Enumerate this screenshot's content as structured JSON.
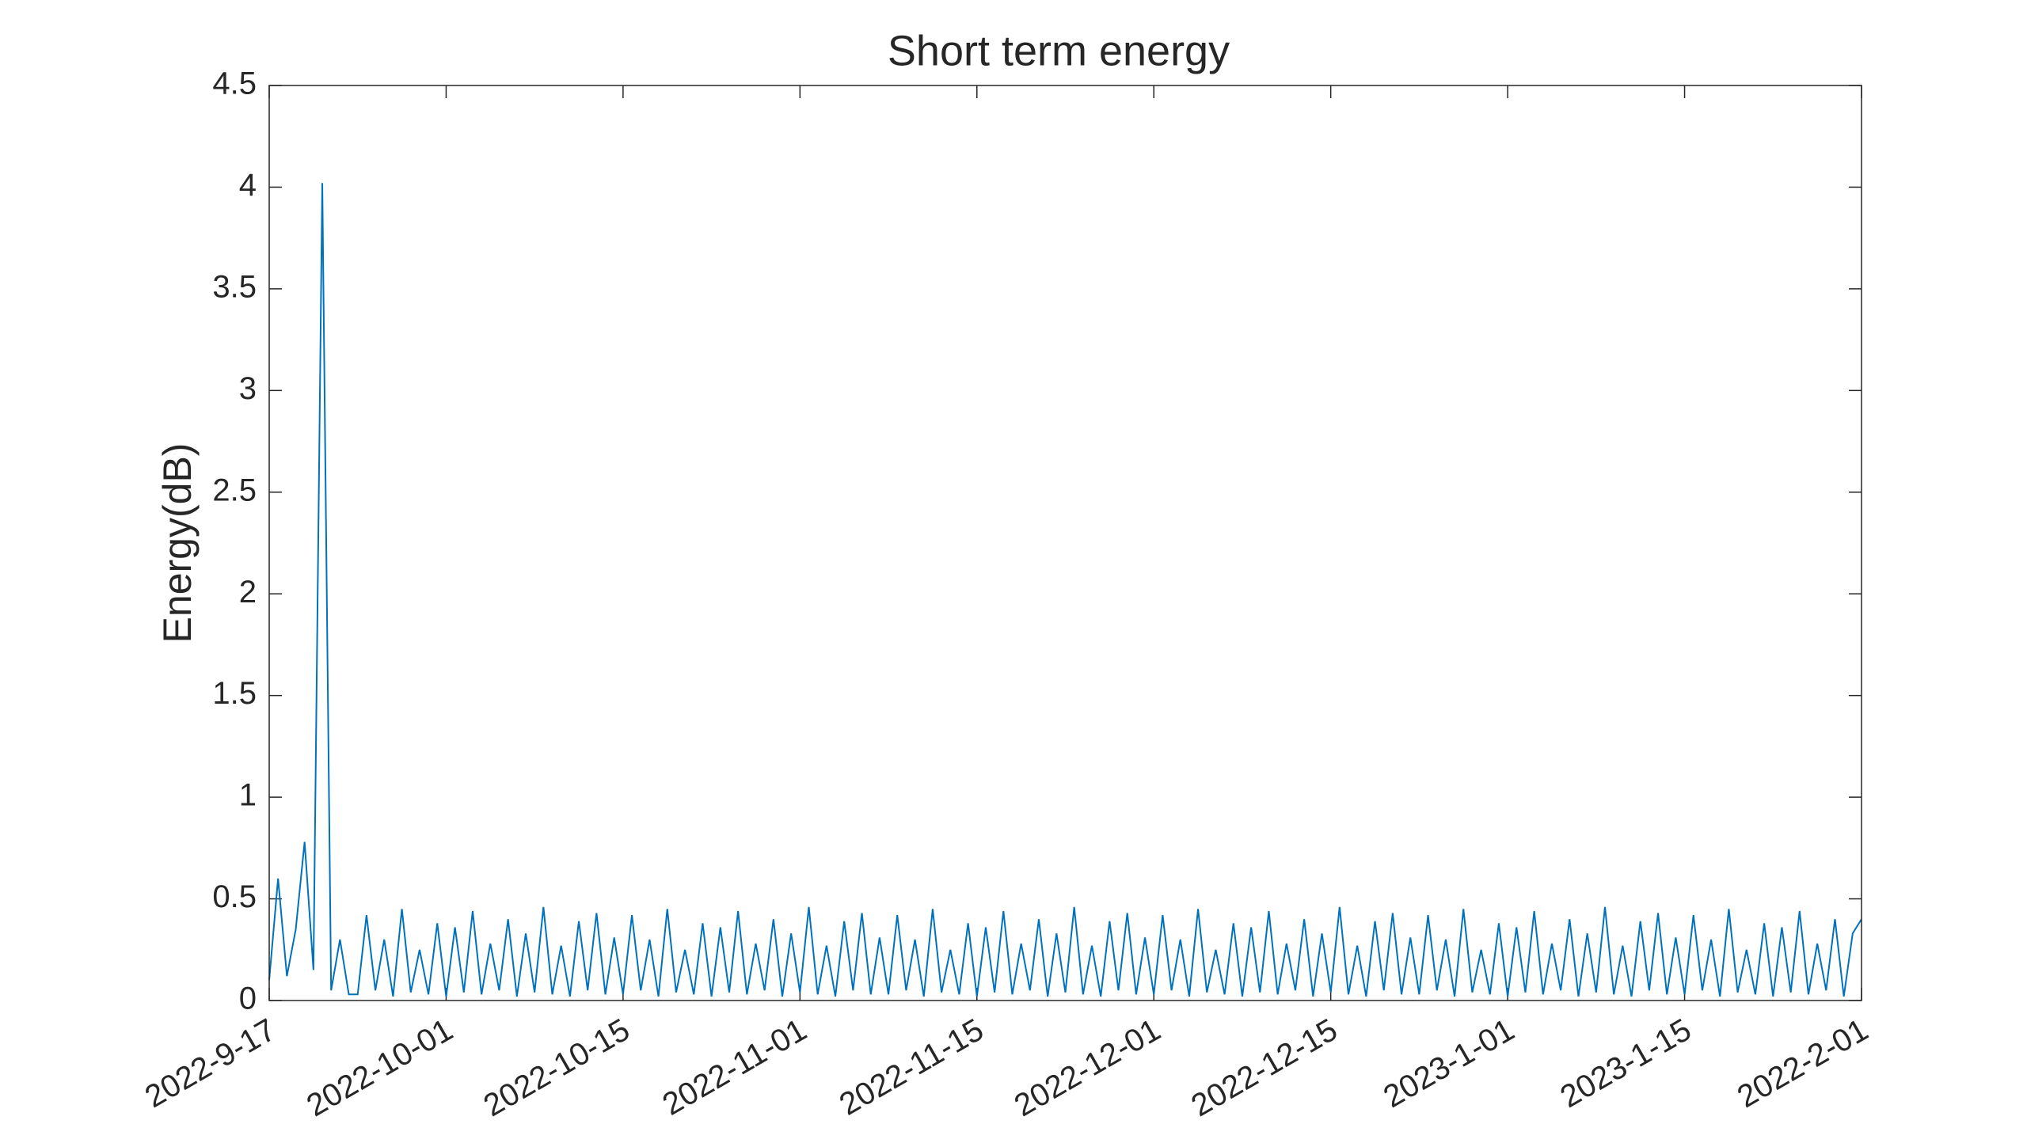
{
  "chart_data": {
    "type": "line",
    "title": "Short term energy",
    "ylabel": "Energy(dB)",
    "color": "#0072bd",
    "xlim": [
      0,
      9
    ],
    "xticks": [
      {
        "value": 0,
        "label": "2022-9-17"
      },
      {
        "value": 1,
        "label": "2022-10-01"
      },
      {
        "value": 2,
        "label": "2022-10-15"
      },
      {
        "value": 3,
        "label": "2022-11-01"
      },
      {
        "value": 4,
        "label": "2022-11-15"
      },
      {
        "value": 5,
        "label": "2022-12-01"
      },
      {
        "value": 6,
        "label": "2022-12-15"
      },
      {
        "value": 7,
        "label": "2023-1-01"
      },
      {
        "value": 8,
        "label": "2023-1-15"
      },
      {
        "value": 9,
        "label": "2022-2-01"
      }
    ],
    "ylim": [
      0,
      4.5
    ],
    "yticks": [
      0,
      0.5,
      1,
      1.5,
      2,
      2.5,
      3,
      3.5,
      4,
      4.5
    ],
    "x": [
      0,
      0.05,
      0.1,
      0.15,
      0.2,
      0.25,
      0.3,
      0.35,
      0.4,
      0.45,
      0.5,
      0.55,
      0.6,
      0.65,
      0.7,
      0.75,
      0.8,
      0.85,
      0.9,
      0.95,
      1,
      1.05,
      1.1,
      1.15,
      1.2,
      1.25,
      1.3,
      1.35,
      1.4,
      1.45,
      1.5,
      1.55,
      1.6,
      1.65,
      1.7,
      1.75,
      1.8,
      1.85,
      1.9,
      1.95,
      2,
      2.05,
      2.1,
      2.15,
      2.2,
      2.25,
      2.3,
      2.35,
      2.4,
      2.45,
      2.5,
      2.55,
      2.6,
      2.65,
      2.7,
      2.75,
      2.8,
      2.85,
      2.9,
      2.95,
      3,
      3.05,
      3.1,
      3.15,
      3.2,
      3.25,
      3.3,
      3.35,
      3.4,
      3.45,
      3.5,
      3.55,
      3.6,
      3.65,
      3.7,
      3.75,
      3.8,
      3.85,
      3.9,
      3.95,
      4,
      4.05,
      4.1,
      4.15,
      4.2,
      4.25,
      4.3,
      4.35,
      4.4,
      4.45,
      4.5,
      4.55,
      4.6,
      4.65,
      4.7,
      4.75,
      4.8,
      4.85,
      4.9,
      4.95,
      5,
      5.05,
      5.1,
      5.15,
      5.2,
      5.25,
      5.3,
      5.35,
      5.4,
      5.45,
      5.5,
      5.55,
      5.6,
      5.65,
      5.7,
      5.75,
      5.8,
      5.85,
      5.9,
      5.95,
      6,
      6.05,
      6.1,
      6.15,
      6.2,
      6.25,
      6.3,
      6.35,
      6.4,
      6.45,
      6.5,
      6.55,
      6.6,
      6.65,
      6.7,
      6.75,
      6.8,
      6.85,
      6.9,
      6.95,
      7,
      7.05,
      7.1,
      7.15,
      7.2,
      7.25,
      7.3,
      7.35,
      7.4,
      7.45,
      7.5,
      7.55,
      7.6,
      7.65,
      7.7,
      7.75,
      7.8,
      7.85,
      7.9,
      7.95,
      8,
      8.05,
      8.1,
      8.15,
      8.2,
      8.25,
      8.3,
      8.35,
      8.4,
      8.45,
      8.5,
      8.55,
      8.6,
      8.65,
      8.7,
      8.75,
      8.8,
      8.85,
      8.9,
      8.95,
      9
    ],
    "values": [
      0.1,
      0.6,
      0.12,
      0.35,
      0.78,
      0.15,
      4.02,
      0.05,
      0.3,
      0.03,
      0.03,
      0.42,
      0.05,
      0.3,
      0.02,
      0.45,
      0.04,
      0.25,
      0.03,
      0.38,
      0.02,
      0.36,
      0.04,
      0.44,
      0.03,
      0.28,
      0.05,
      0.4,
      0.02,
      0.33,
      0.04,
      0.46,
      0.03,
      0.27,
      0.02,
      0.39,
      0.05,
      0.43,
      0.03,
      0.31,
      0.03,
      0.42,
      0.05,
      0.3,
      0.02,
      0.45,
      0.04,
      0.25,
      0.03,
      0.38,
      0.02,
      0.36,
      0.04,
      0.44,
      0.03,
      0.28,
      0.05,
      0.4,
      0.02,
      0.33,
      0.04,
      0.46,
      0.03,
      0.27,
      0.02,
      0.39,
      0.05,
      0.43,
      0.03,
      0.31,
      0.03,
      0.42,
      0.05,
      0.3,
      0.02,
      0.45,
      0.04,
      0.25,
      0.03,
      0.38,
      0.02,
      0.36,
      0.04,
      0.44,
      0.03,
      0.28,
      0.05,
      0.4,
      0.02,
      0.33,
      0.04,
      0.46,
      0.03,
      0.27,
      0.02,
      0.39,
      0.05,
      0.43,
      0.03,
      0.31,
      0.03,
      0.42,
      0.05,
      0.3,
      0.02,
      0.45,
      0.04,
      0.25,
      0.03,
      0.38,
      0.02,
      0.36,
      0.04,
      0.44,
      0.03,
      0.28,
      0.05,
      0.4,
      0.02,
      0.33,
      0.04,
      0.46,
      0.03,
      0.27,
      0.02,
      0.39,
      0.05,
      0.43,
      0.03,
      0.31,
      0.03,
      0.42,
      0.05,
      0.3,
      0.02,
      0.45,
      0.04,
      0.25,
      0.03,
      0.38,
      0.02,
      0.36,
      0.04,
      0.44,
      0.03,
      0.28,
      0.05,
      0.4,
      0.02,
      0.33,
      0.04,
      0.46,
      0.03,
      0.27,
      0.02,
      0.39,
      0.05,
      0.43,
      0.03,
      0.31,
      0.03,
      0.42,
      0.05,
      0.3,
      0.02,
      0.45,
      0.04,
      0.25,
      0.03,
      0.38,
      0.02,
      0.36,
      0.04,
      0.44,
      0.03,
      0.28,
      0.05,
      0.4,
      0.02,
      0.33,
      0.4
    ]
  }
}
